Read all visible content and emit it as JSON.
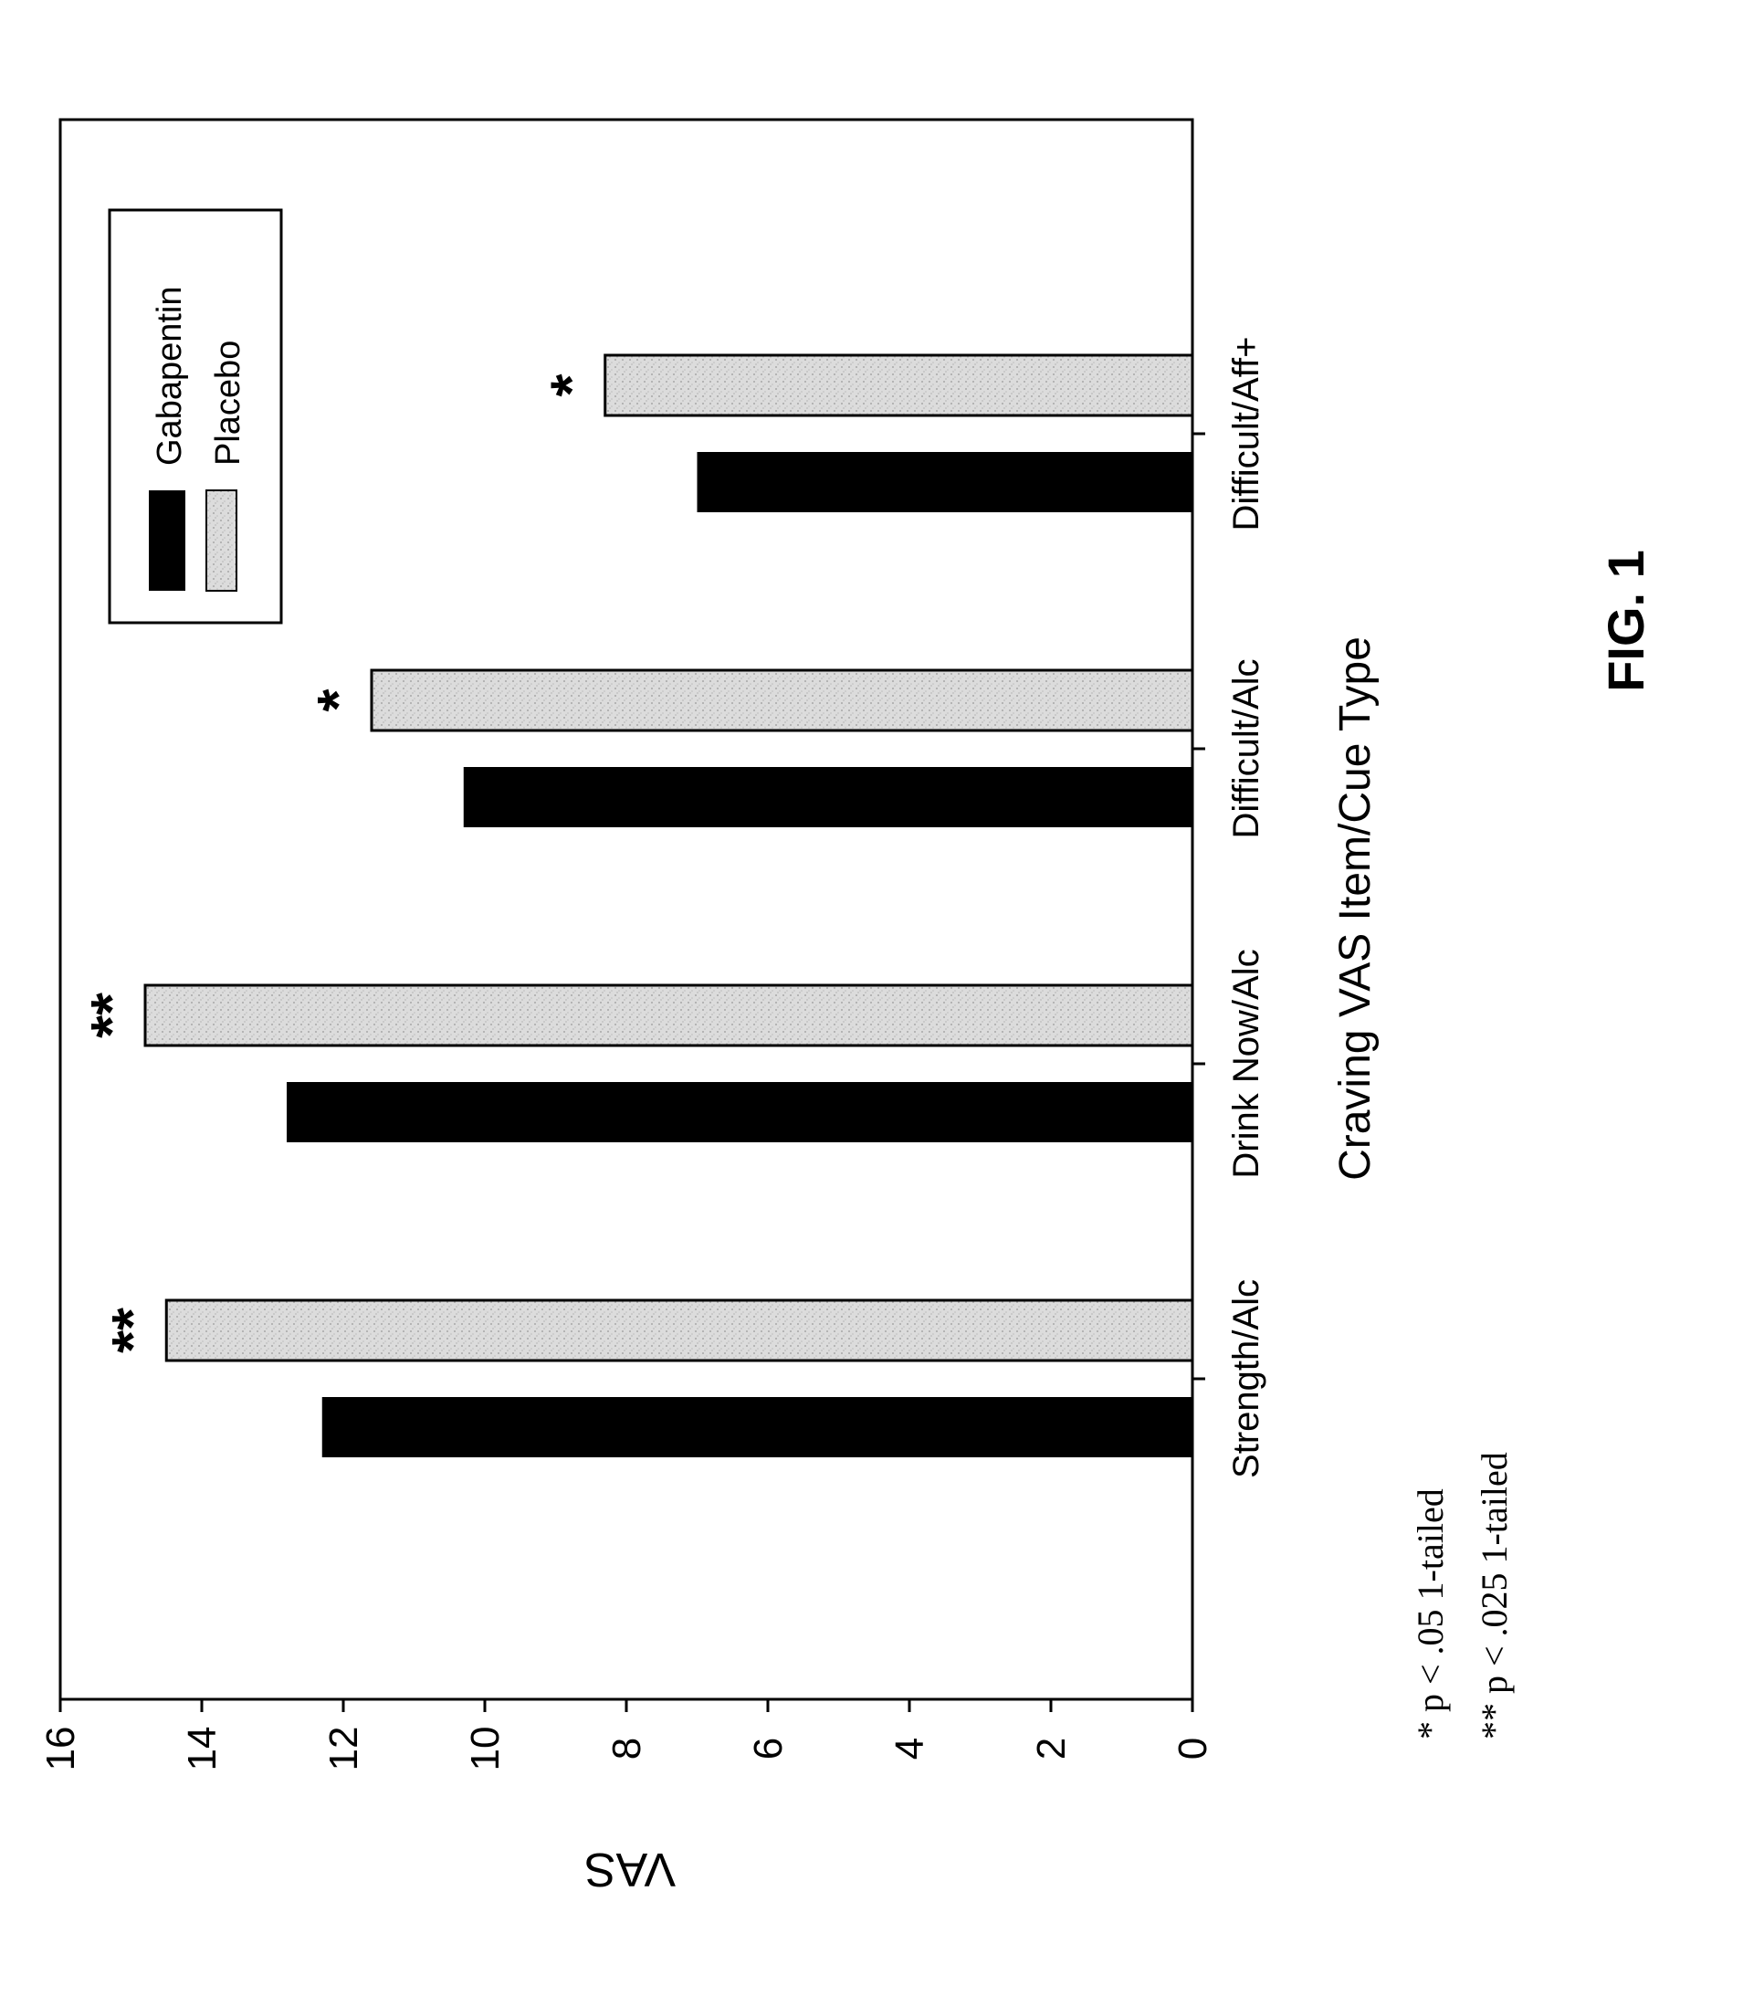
{
  "chart_data": {
    "type": "bar",
    "orientation": "rotated",
    "xlabel": "Craving VAS Item/Cue Type",
    "ylabel": "VAS",
    "ylim": [
      0,
      16
    ],
    "yticks": [
      "0",
      "2",
      "4",
      "6",
      "8",
      "10",
      "12",
      "14",
      "16"
    ],
    "categories": [
      "Strength/Alc",
      "Drink Now/Alc",
      "Difficult/Alc",
      "Difficult/Aff+"
    ],
    "series": [
      {
        "name": "Gabapentin",
        "values": [
          12.3,
          12.8,
          10.3,
          7.0
        ],
        "color": "#000000"
      },
      {
        "name": "Placebo",
        "values": [
          14.5,
          14.8,
          11.6,
          8.3
        ],
        "color": "#d9d9d9"
      }
    ],
    "significance": [
      "**",
      "**",
      "*",
      "*"
    ],
    "legend_placement": "top-right",
    "grid": false,
    "footnotes": [
      "*   p < .05 1-tailed",
      "** p < .025 1-tailed"
    ],
    "figure_label": "FIG. 1"
  }
}
